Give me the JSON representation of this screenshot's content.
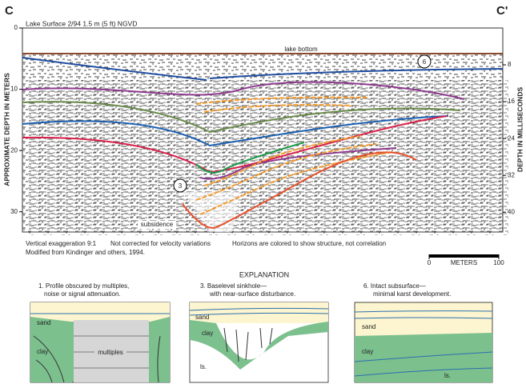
{
  "section": {
    "left_label": "C",
    "right_label": "C'",
    "header": "Lake Surface 2/94  1.5 m (5 ft) NGVD",
    "y_axis_title": "APPROXIMATE DEPTH IN METERS",
    "y2_axis_title": "DEPTH IN MILLISECONDS",
    "ylim": [
      0,
      33.3
    ],
    "yticks": [
      0,
      10,
      20,
      30
    ],
    "y2lim": [
      0,
      44.3
    ],
    "y2ticks": [
      8,
      16,
      24,
      32,
      40
    ],
    "annotations": {
      "lake_bottom": "lake bottom",
      "marker_6": "6",
      "marker_3": "3",
      "subsidence": "subsidence"
    }
  },
  "notes": {
    "line1a": "Vertical exaggeration 9:1",
    "line1b": "Not corrected for velocity variations",
    "line1c": "Horizons are colored to show structure, not correlation",
    "line2": "Modified from Kindinger and others, 1994."
  },
  "scale_bar": {
    "title": "METERS",
    "ticks": [
      0,
      100
    ],
    "lim": [
      0,
      100
    ]
  },
  "explanation": {
    "title": "EXPLANATION",
    "panels": [
      {
        "caption": [
          "1. Profile obscured by multiples,",
          "noise or signal attenuation."
        ],
        "labels": [
          "sand",
          "clay",
          "multiples"
        ]
      },
      {
        "caption": [
          "3. Baselevel sinkhole—",
          "with near-surface disturbance."
        ],
        "labels": [
          "sand",
          "clay",
          "ls."
        ]
      },
      {
        "caption": [
          "6. Intact subsurface—",
          "minimal karst development."
        ],
        "labels": [
          "sand",
          "clay",
          "ls."
        ]
      }
    ]
  }
}
